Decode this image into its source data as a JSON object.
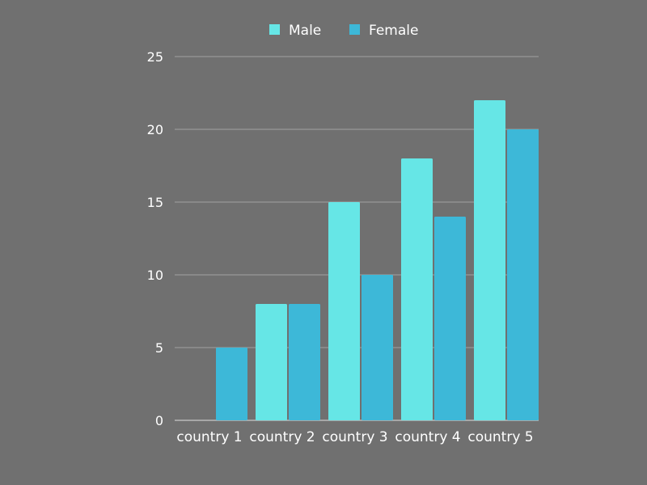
{
  "chart_data": {
    "type": "bar",
    "categories": [
      "country 1",
      "country 2",
      "country 3",
      "country 4",
      "country 5"
    ],
    "series": [
      {
        "name": "Male",
        "values": [
          0,
          8,
          15,
          18,
          22
        ],
        "color": "#66e6e6"
      },
      {
        "name": "Female",
        "values": [
          5,
          8,
          10,
          14,
          20
        ],
        "color": "#3db8d8"
      }
    ],
    "yticks": [
      "0",
      "5",
      "10",
      "15",
      "20",
      "25"
    ],
    "ylim": [
      0,
      25
    ],
    "grid": true,
    "legend_position": "top-center",
    "background": "#707070"
  }
}
